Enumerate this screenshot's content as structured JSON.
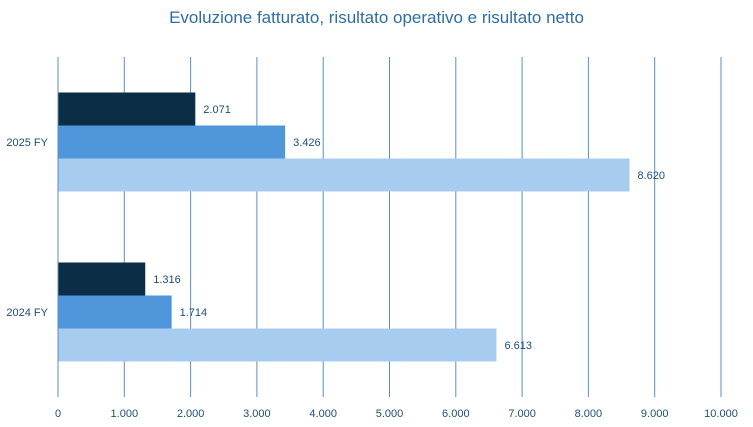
{
  "chart_data": {
    "type": "bar",
    "orientation": "horizontal",
    "title": "Evoluzione fatturato, risultato operativo e risultato netto",
    "xlim": [
      0,
      10000
    ],
    "x_ticks": [
      0,
      1000,
      2000,
      3000,
      4000,
      5000,
      6000,
      7000,
      8000,
      9000,
      10000
    ],
    "x_tick_labels": [
      "0",
      "1.000",
      "2.000",
      "3.000",
      "4.000",
      "5.000",
      "6.000",
      "7.000",
      "8.000",
      "9.000",
      "10.000"
    ],
    "grid": "vertical",
    "legend": "none",
    "categories": [
      "2025 FY",
      "2024 FY"
    ],
    "series": [
      {
        "color": "#0b2d45",
        "values": [
          2071,
          1316
        ],
        "labels": [
          "2.071",
          "1.316"
        ]
      },
      {
        "color": "#4f96db",
        "values": [
          3426,
          1714
        ],
        "labels": [
          "3.426",
          "1.714"
        ]
      },
      {
        "color": "#a8ccef",
        "values": [
          8620,
          6613
        ],
        "labels": [
          "8.620",
          "6.613"
        ]
      }
    ]
  }
}
